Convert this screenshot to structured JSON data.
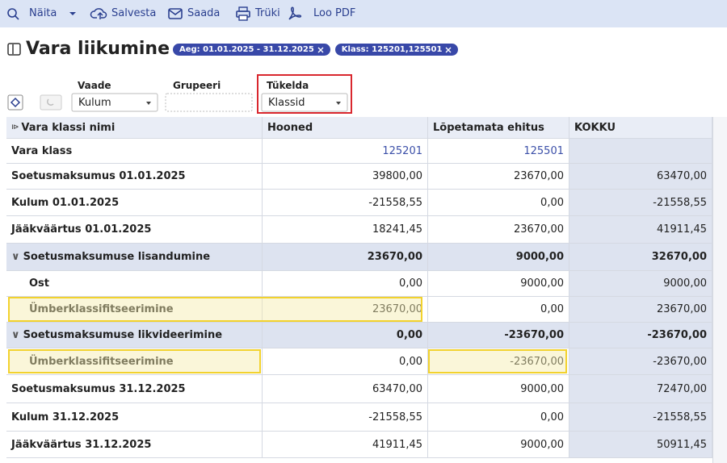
{
  "toolbar": [
    "Näita",
    "Salvesta",
    "Saada",
    "Trüki",
    "Loo PDF"
  ],
  "header": {
    "title": "Vara liikumine",
    "chips": [
      "Aeg: 01.01.2025 - 31.12.2025",
      "Klass: 125201,125501"
    ]
  },
  "controls": {
    "vaade_label": "Vaade",
    "vaade_value": "Kulum",
    "grupeeri_label": "Grupeeri",
    "tukelda_label": "Tükelda",
    "tukelda_value": "Klassid"
  },
  "table": {
    "columns": [
      "Vara klassi nimi",
      "Hooned",
      "Lõpetamata ehitus",
      "KOKKU"
    ],
    "rows": [
      {
        "label": "Vara klass",
        "cells": [
          "125201",
          "125501"
        ]
      },
      {
        "label": "Soetusmaksumus 01.01.2025",
        "cells": [
          "39800,00",
          "23670,00",
          "63470,00"
        ]
      },
      {
        "label": "Kulum 01.01.2025",
        "cells": [
          "-21558,55",
          "0,00",
          "-21558,55"
        ]
      },
      {
        "label": "Jääkväärtus 01.01.2025",
        "cells": [
          "18241,45",
          "23670,00",
          "41911,45"
        ]
      },
      {
        "label": "Soetusmaksumuse lisandumine",
        "cells": [
          "23670,00",
          "9000,00",
          "32670,00"
        ]
      },
      {
        "label": "Ost",
        "cells": [
          "0,00",
          "9000,00",
          "9000,00"
        ]
      },
      {
        "label": "Ümberklassifitseerimine",
        "cells": [
          "23670,00",
          "0,00",
          "23670,00"
        ]
      },
      {
        "label": "Soetusmaksumuse likvideerimine",
        "cells": [
          "0,00",
          "-23670,00",
          "-23670,00"
        ]
      },
      {
        "label": "Ümberklassifitseerimine",
        "cells": [
          "0,00",
          "-23670,00",
          "-23670,00"
        ]
      },
      {
        "label": "Soetusmaksumus 31.12.2025",
        "cells": [
          "63470,00",
          "9000,00",
          "72470,00"
        ]
      },
      {
        "label": "Kulum 31.12.2025",
        "cells": [
          "-21558,55",
          "0,00",
          "-21558,55"
        ]
      },
      {
        "label": "Jääkväärtus 31.12.2025",
        "cells": [
          "41911,45",
          "9000,00",
          "50911,45"
        ]
      }
    ]
  }
}
